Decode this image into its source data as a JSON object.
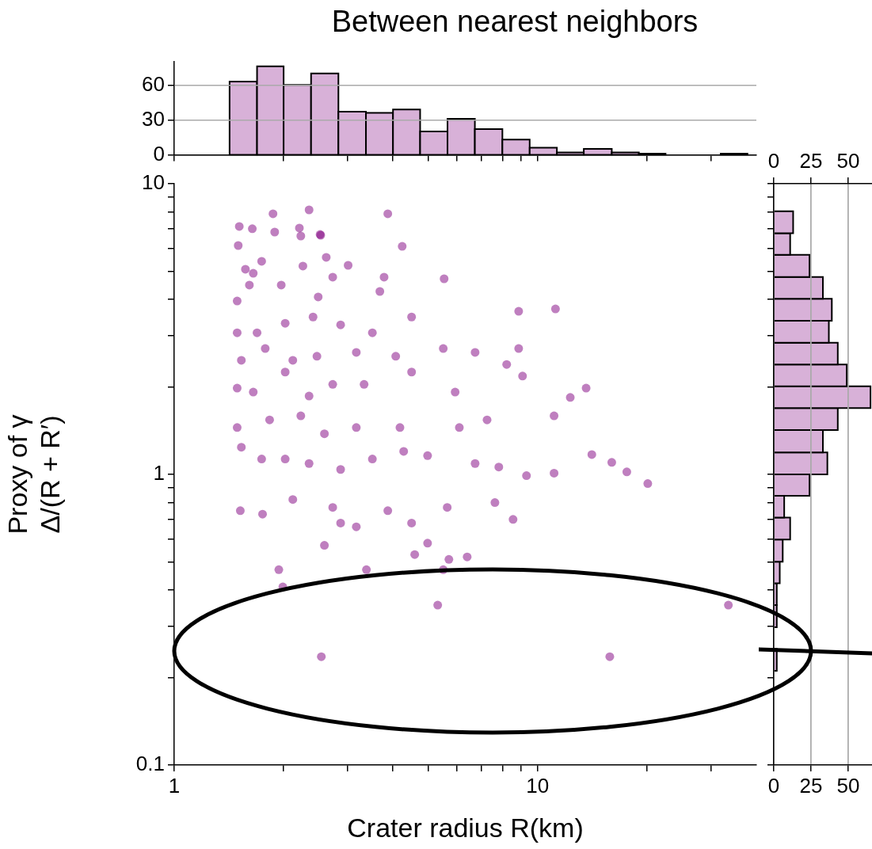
{
  "chart_data": [
    {
      "type": "histogram",
      "title": "Between nearest neighbors",
      "color": "#d8b1d8",
      "log": "x",
      "grid": "y",
      "tick_labels": "y",
      "bins": [
        1.42,
        1.69,
        2.0,
        2.38,
        2.83,
        3.37,
        4.0,
        4.75,
        5.65,
        6.72,
        8.0,
        9.51,
        11.3,
        13.4,
        16.0,
        19.0,
        22.5,
        31.9,
        37.8
      ],
      "values": [
        63,
        76,
        60,
        70,
        37,
        36,
        39,
        20,
        31,
        22,
        13,
        6,
        2,
        5,
        2,
        1,
        0,
        1
      ],
      "xlim": [
        1,
        40
      ],
      "xticks": [
        {
          "value": 1,
          "label": null
        },
        {
          "value": 2,
          "label": null
        },
        {
          "value": 3,
          "label": null
        },
        {
          "value": 4,
          "label": null
        },
        {
          "value": 5,
          "label": null
        },
        {
          "value": 6,
          "label": null
        },
        {
          "value": 7,
          "label": null
        },
        {
          "value": 8,
          "label": null
        },
        {
          "value": 9,
          "label": null
        },
        {
          "value": 10,
          "label": null
        },
        {
          "value": 20,
          "label": null
        },
        {
          "value": 30,
          "label": null
        }
      ],
      "ylim": [
        0,
        80
      ],
      "yticks": [
        0,
        30,
        60
      ]
    },
    {
      "type": "scatter",
      "xlabel": "Crater radius R(km)",
      "ylabel": "Proxy of γ\nΔ/(R + R′)",
      "color": "#800080",
      "marker": "circle",
      "log": "xy",
      "x": [
        1.51,
        1.64,
        1.87,
        2.35,
        2.21,
        2.53,
        3.87,
        1.5,
        1.57,
        1.65,
        1.74,
        1.89,
        2.23,
        2.52,
        2.62,
        3.01,
        4.24,
        1.49,
        1.61,
        1.97,
        2.26,
        2.49,
        2.73,
        3.68,
        3.78,
        1.49,
        1.69,
        2.02,
        2.41,
        2.87,
        3.51,
        4.5,
        5.53,
        8.87,
        1.53,
        1.78,
        2.12,
        2.47,
        3.17,
        4.07,
        5.5,
        6.73,
        8.87,
        11.2,
        1.49,
        1.65,
        2.02,
        2.35,
        2.73,
        3.33,
        4.5,
        5.93,
        8.22,
        9.09,
        12.3,
        13.6,
        1.49,
        1.83,
        2.23,
        2.59,
        3.17,
        4.18,
        6.09,
        7.26,
        11.1,
        1.53,
        1.74,
        2.02,
        2.35,
        2.87,
        3.51,
        4.28,
        4.98,
        6.73,
        7.82,
        9.32,
        11.1,
        14.1,
        16.0,
        17.6,
        20.1,
        1.52,
        1.75,
        2.12,
        2.73,
        3.17,
        3.87,
        4.5,
        5.64,
        7.63,
        8.56,
        1.94,
        1.99,
        2.59,
        2.87,
        4.98,
        5.7,
        4.59,
        6.4,
        5.31,
        2.54,
        15.8,
        33.5,
        3.38,
        5.5
      ],
      "values": [
        7.13,
        7.0,
        7.88,
        8.13,
        7.04,
        6.65,
        7.88,
        6.13,
        5.08,
        4.92,
        5.41,
        6.82,
        6.61,
        6.69,
        5.58,
        5.24,
        6.09,
        3.95,
        4.48,
        4.48,
        5.21,
        4.08,
        4.77,
        4.26,
        4.77,
        3.07,
        3.07,
        3.31,
        3.48,
        3.27,
        3.07,
        3.48,
        4.71,
        3.64,
        2.47,
        2.71,
        2.47,
        2.55,
        2.63,
        2.55,
        2.71,
        2.63,
        2.71,
        3.71,
        1.98,
        1.92,
        2.25,
        1.86,
        2.04,
        2.04,
        2.25,
        1.92,
        2.39,
        2.18,
        1.84,
        1.98,
        1.45,
        1.54,
        1.59,
        1.38,
        1.45,
        1.45,
        1.45,
        1.54,
        1.59,
        1.24,
        1.13,
        1.13,
        1.09,
        1.04,
        1.13,
        1.2,
        1.16,
        1.09,
        1.06,
        0.99,
        1.01,
        1.17,
        1.1,
        1.02,
        0.93,
        0.75,
        0.73,
        0.82,
        0.77,
        0.66,
        0.75,
        0.68,
        0.77,
        0.8,
        0.7,
        0.47,
        0.41,
        0.57,
        0.68,
        0.58,
        0.51,
        0.53,
        0.52,
        0.355,
        0.236,
        0.236,
        0.355,
        0.47,
        0.47
      ],
      "xlim": [
        1,
        40
      ],
      "xticks": [
        1,
        {
          "value": 2,
          "label": null
        },
        {
          "value": 3,
          "label": null
        },
        {
          "value": 4,
          "label": null
        },
        {
          "value": 5,
          "label": null
        },
        {
          "value": 6,
          "label": null
        },
        {
          "value": 7,
          "label": null
        },
        {
          "value": 8,
          "label": null
        },
        {
          "value": 9,
          "label": null
        },
        10,
        {
          "value": 20,
          "label": null
        },
        {
          "value": 30,
          "label": null
        }
      ],
      "ylim": [
        0.1,
        10
      ],
      "yticks": [
        0.1,
        {
          "value": 0.2,
          "label": null
        },
        {
          "value": 0.3,
          "label": null
        },
        {
          "value": 0.4,
          "label": null
        },
        {
          "value": 0.5,
          "label": null
        },
        {
          "value": 0.6,
          "label": null
        },
        {
          "value": 0.7,
          "label": null
        },
        {
          "value": 0.8,
          "label": null
        },
        {
          "value": 0.9,
          "label": null
        },
        1,
        {
          "value": 2,
          "label": null
        },
        {
          "value": 3,
          "label": null
        },
        {
          "value": 4,
          "label": null
        },
        {
          "value": 5,
          "label": null
        },
        {
          "value": 6,
          "label": null
        },
        {
          "value": 7,
          "label": null
        },
        {
          "value": 8,
          "label": null
        },
        {
          "value": 9,
          "label": null
        },
        10
      ]
    },
    {
      "type": "histogram",
      "orientation": "horizontal",
      "color": "#d8b1d8",
      "log": "y",
      "grid": "x",
      "tick_labels": "x",
      "bins": [
        0.211,
        0.251,
        0.298,
        0.355,
        0.422,
        0.501,
        0.597,
        0.71,
        0.844,
        1.0,
        1.19,
        1.42,
        1.69,
        2.01,
        2.39,
        2.84,
        3.38,
        4.02,
        4.78,
        5.69,
        6.76,
        8.04
      ],
      "values": [
        2,
        0,
        2,
        2,
        4,
        6,
        11,
        7,
        24,
        36,
        33,
        43,
        65,
        49,
        43,
        37,
        39,
        33,
        24,
        11,
        13
      ],
      "xlim": [
        0,
        66
      ],
      "xticks": [
        0,
        25,
        50
      ],
      "x2lim": [
        0,
        66
      ],
      "x2ticks": [
        0,
        25,
        50
      ],
      "ylim": [
        0.1,
        10
      ],
      "yticks": [
        {
          "value": 0.1,
          "label": null
        },
        {
          "value": 0.2,
          "label": null
        },
        {
          "value": 0.3,
          "label": null
        },
        {
          "value": 0.4,
          "label": null
        },
        {
          "value": 0.5,
          "label": null
        },
        {
          "value": 0.6,
          "label": null
        },
        {
          "value": 0.7,
          "label": null
        },
        {
          "value": 0.8,
          "label": null
        },
        {
          "value": 0.9,
          "label": null
        },
        {
          "value": 1,
          "label": null
        },
        {
          "value": 2,
          "label": null
        },
        {
          "value": 3,
          "label": null
        },
        {
          "value": 4,
          "label": null
        },
        {
          "value": 5,
          "label": null
        },
        {
          "value": 6,
          "label": null
        },
        {
          "value": 7,
          "label": null
        },
        {
          "value": 8,
          "label": null
        },
        {
          "value": 9,
          "label": null
        },
        {
          "value": 10,
          "label": null
        }
      ]
    }
  ]
}
